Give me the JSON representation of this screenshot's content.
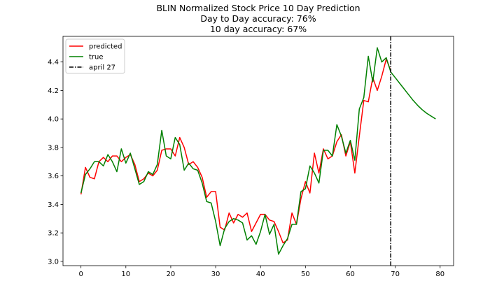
{
  "chart_data": {
    "type": "line",
    "title": "BLIN Normalized Stock Price 10 Day Prediction",
    "subtitle_lines": [
      "Day to Day accuracy: 76%",
      "10 day accuracy: 67%"
    ],
    "xlabel": "",
    "ylabel": "",
    "xlim": [
      -4,
      83
    ],
    "ylim": [
      2.97,
      4.58
    ],
    "xticks": [
      0,
      10,
      20,
      30,
      40,
      50,
      60,
      70,
      80
    ],
    "yticks": [
      3.0,
      3.2,
      3.4,
      3.6,
      3.8,
      4.0,
      4.2,
      4.4
    ],
    "ytick_labels": [
      "3.0",
      "3.2",
      "3.4",
      "3.6",
      "3.8",
      "4.0",
      "4.2",
      "4.4"
    ],
    "grid": false,
    "legend_position": "top-left",
    "series": [
      {
        "name": "predicted",
        "color": "#ff0000",
        "x": [
          0,
          1,
          2,
          3,
          4,
          5,
          6,
          7,
          8,
          9,
          10,
          11,
          12,
          13,
          14,
          15,
          16,
          17,
          18,
          19,
          20,
          21,
          22,
          23,
          24,
          25,
          26,
          27,
          28,
          29,
          30,
          31,
          32,
          33,
          34,
          35,
          36,
          37,
          38,
          39,
          40,
          41,
          42,
          43,
          44,
          45,
          46,
          47,
          48,
          49,
          50,
          51,
          52,
          53,
          54,
          55,
          56,
          57,
          58,
          59,
          60,
          61,
          62,
          63,
          64,
          65,
          66,
          67,
          68,
          69
        ],
        "y": [
          3.47,
          3.66,
          3.59,
          3.58,
          3.7,
          3.73,
          3.7,
          3.74,
          3.74,
          3.7,
          3.73,
          3.75,
          3.68,
          3.56,
          3.58,
          3.62,
          3.6,
          3.64,
          3.78,
          3.79,
          3.79,
          3.74,
          3.87,
          3.8,
          3.68,
          3.7,
          3.66,
          3.59,
          3.45,
          3.49,
          3.49,
          3.24,
          3.22,
          3.34,
          3.27,
          3.33,
          3.31,
          3.34,
          3.21,
          3.27,
          3.33,
          3.33,
          3.29,
          3.28,
          3.21,
          3.13,
          3.15,
          3.34,
          3.26,
          3.44,
          3.56,
          3.48,
          3.76,
          3.62,
          3.79,
          3.72,
          3.74,
          3.84,
          3.89,
          3.74,
          3.84,
          3.62,
          3.88,
          4.13,
          4.12,
          4.29,
          4.2,
          4.3,
          4.42,
          4.34
        ]
      },
      {
        "name": "true",
        "color": "#008000",
        "x": [
          0,
          1,
          2,
          3,
          4,
          5,
          6,
          7,
          8,
          9,
          10,
          11,
          12,
          13,
          14,
          15,
          16,
          17,
          18,
          19,
          20,
          21,
          22,
          23,
          24,
          25,
          26,
          27,
          28,
          29,
          30,
          31,
          32,
          33,
          34,
          35,
          36,
          37,
          38,
          39,
          40,
          41,
          42,
          43,
          44,
          45,
          46,
          47,
          48,
          49,
          50,
          51,
          52,
          53,
          54,
          55,
          56,
          57,
          58,
          59,
          60,
          61,
          62,
          63,
          64,
          65,
          66,
          67,
          68,
          69,
          70,
          71,
          72,
          73,
          74,
          75,
          76,
          77,
          78,
          79
        ],
        "y": [
          3.48,
          3.61,
          3.65,
          3.7,
          3.7,
          3.67,
          3.75,
          3.7,
          3.63,
          3.79,
          3.69,
          3.76,
          3.65,
          3.54,
          3.56,
          3.63,
          3.61,
          3.68,
          3.92,
          3.74,
          3.72,
          3.87,
          3.82,
          3.64,
          3.69,
          3.65,
          3.64,
          3.55,
          3.42,
          3.41,
          3.28,
          3.11,
          3.23,
          3.28,
          3.3,
          3.29,
          3.27,
          3.15,
          3.18,
          3.12,
          3.21,
          3.33,
          3.19,
          3.26,
          3.05,
          3.11,
          3.16,
          3.26,
          3.26,
          3.49,
          3.51,
          3.67,
          3.62,
          3.55,
          3.78,
          3.78,
          3.74,
          3.96,
          3.88,
          3.76,
          3.85,
          3.71,
          4.07,
          4.15,
          4.44,
          4.26,
          4.5,
          4.4,
          4.43,
          4.33,
          4.29,
          4.25,
          4.21,
          4.17,
          4.13,
          4.095,
          4.065,
          4.04,
          4.02,
          4.0
        ]
      }
    ],
    "vlines": [
      {
        "name": "april 27",
        "x": 69,
        "color": "#000000",
        "style": "dash-dot"
      }
    ]
  }
}
